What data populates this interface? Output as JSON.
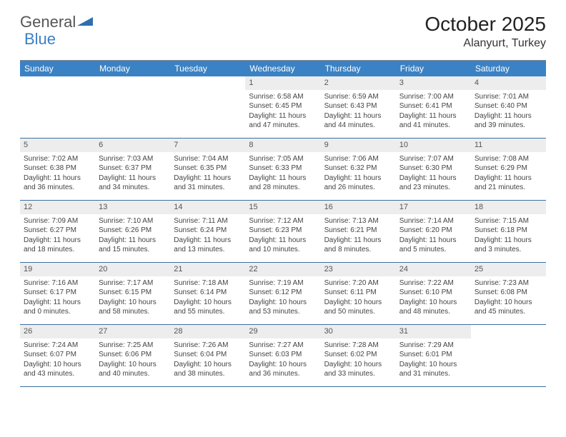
{
  "logo": {
    "text1": "General",
    "text2": "Blue"
  },
  "title": "October 2025",
  "subtitle": "Alanyurt, Turkey",
  "colors": {
    "header_bg": "#3b82c4",
    "header_text": "#ffffff",
    "daynum_bg": "#ededed",
    "border": "#3b6fa0",
    "body_text": "#444444"
  },
  "day_headers": [
    "Sunday",
    "Monday",
    "Tuesday",
    "Wednesday",
    "Thursday",
    "Friday",
    "Saturday"
  ],
  "weeks": [
    [
      {
        "n": "",
        "empty": true
      },
      {
        "n": "",
        "empty": true
      },
      {
        "n": "",
        "empty": true
      },
      {
        "n": "1",
        "sr": "6:58 AM",
        "ss": "6:45 PM",
        "dl": "11 hours and 47 minutes."
      },
      {
        "n": "2",
        "sr": "6:59 AM",
        "ss": "6:43 PM",
        "dl": "11 hours and 44 minutes."
      },
      {
        "n": "3",
        "sr": "7:00 AM",
        "ss": "6:41 PM",
        "dl": "11 hours and 41 minutes."
      },
      {
        "n": "4",
        "sr": "7:01 AM",
        "ss": "6:40 PM",
        "dl": "11 hours and 39 minutes."
      }
    ],
    [
      {
        "n": "5",
        "sr": "7:02 AM",
        "ss": "6:38 PM",
        "dl": "11 hours and 36 minutes."
      },
      {
        "n": "6",
        "sr": "7:03 AM",
        "ss": "6:37 PM",
        "dl": "11 hours and 34 minutes."
      },
      {
        "n": "7",
        "sr": "7:04 AM",
        "ss": "6:35 PM",
        "dl": "11 hours and 31 minutes."
      },
      {
        "n": "8",
        "sr": "7:05 AM",
        "ss": "6:33 PM",
        "dl": "11 hours and 28 minutes."
      },
      {
        "n": "9",
        "sr": "7:06 AM",
        "ss": "6:32 PM",
        "dl": "11 hours and 26 minutes."
      },
      {
        "n": "10",
        "sr": "7:07 AM",
        "ss": "6:30 PM",
        "dl": "11 hours and 23 minutes."
      },
      {
        "n": "11",
        "sr": "7:08 AM",
        "ss": "6:29 PM",
        "dl": "11 hours and 21 minutes."
      }
    ],
    [
      {
        "n": "12",
        "sr": "7:09 AM",
        "ss": "6:27 PM",
        "dl": "11 hours and 18 minutes."
      },
      {
        "n": "13",
        "sr": "7:10 AM",
        "ss": "6:26 PM",
        "dl": "11 hours and 15 minutes."
      },
      {
        "n": "14",
        "sr": "7:11 AM",
        "ss": "6:24 PM",
        "dl": "11 hours and 13 minutes."
      },
      {
        "n": "15",
        "sr": "7:12 AM",
        "ss": "6:23 PM",
        "dl": "11 hours and 10 minutes."
      },
      {
        "n": "16",
        "sr": "7:13 AM",
        "ss": "6:21 PM",
        "dl": "11 hours and 8 minutes."
      },
      {
        "n": "17",
        "sr": "7:14 AM",
        "ss": "6:20 PM",
        "dl": "11 hours and 5 minutes."
      },
      {
        "n": "18",
        "sr": "7:15 AM",
        "ss": "6:18 PM",
        "dl": "11 hours and 3 minutes."
      }
    ],
    [
      {
        "n": "19",
        "sr": "7:16 AM",
        "ss": "6:17 PM",
        "dl": "11 hours and 0 minutes."
      },
      {
        "n": "20",
        "sr": "7:17 AM",
        "ss": "6:15 PM",
        "dl": "10 hours and 58 minutes."
      },
      {
        "n": "21",
        "sr": "7:18 AM",
        "ss": "6:14 PM",
        "dl": "10 hours and 55 minutes."
      },
      {
        "n": "22",
        "sr": "7:19 AM",
        "ss": "6:12 PM",
        "dl": "10 hours and 53 minutes."
      },
      {
        "n": "23",
        "sr": "7:20 AM",
        "ss": "6:11 PM",
        "dl": "10 hours and 50 minutes."
      },
      {
        "n": "24",
        "sr": "7:22 AM",
        "ss": "6:10 PM",
        "dl": "10 hours and 48 minutes."
      },
      {
        "n": "25",
        "sr": "7:23 AM",
        "ss": "6:08 PM",
        "dl": "10 hours and 45 minutes."
      }
    ],
    [
      {
        "n": "26",
        "sr": "7:24 AM",
        "ss": "6:07 PM",
        "dl": "10 hours and 43 minutes."
      },
      {
        "n": "27",
        "sr": "7:25 AM",
        "ss": "6:06 PM",
        "dl": "10 hours and 40 minutes."
      },
      {
        "n": "28",
        "sr": "7:26 AM",
        "ss": "6:04 PM",
        "dl": "10 hours and 38 minutes."
      },
      {
        "n": "29",
        "sr": "7:27 AM",
        "ss": "6:03 PM",
        "dl": "10 hours and 36 minutes."
      },
      {
        "n": "30",
        "sr": "7:28 AM",
        "ss": "6:02 PM",
        "dl": "10 hours and 33 minutes."
      },
      {
        "n": "31",
        "sr": "7:29 AM",
        "ss": "6:01 PM",
        "dl": "10 hours and 31 minutes."
      },
      {
        "n": "",
        "empty": true
      }
    ]
  ],
  "labels": {
    "sunrise": "Sunrise: ",
    "sunset": "Sunset: ",
    "daylight": "Daylight: "
  }
}
